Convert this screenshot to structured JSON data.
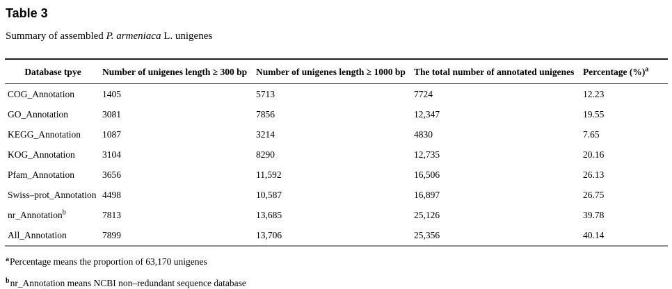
{
  "title": "Table 3",
  "subtitle": {
    "prefix": "Summary of assembled ",
    "species": "P. armeniaca",
    "suffix": " L. unigenes"
  },
  "table": {
    "columns": {
      "database": "Database tpye",
      "len300": "Number of unigenes length ≥ 300 bp",
      "len1000": "Number of unigenes length ≥ 1000 bp",
      "total": "The total number of annotated unigenes",
      "percentage": "Percentage (%)",
      "percentage_sup": "a"
    },
    "rows": [
      {
        "name": "COG_Annotation",
        "name_sup": "",
        "v300": "1405",
        "v1000": "5713",
        "total": "7724",
        "pct": "12.23"
      },
      {
        "name": "GO_Annotation",
        "name_sup": "",
        "v300": "3081",
        "v1000": "7856",
        "total": "12,347",
        "pct": "19.55"
      },
      {
        "name": "KEGG_Annotation",
        "name_sup": "",
        "v300": "1087",
        "v1000": "3214",
        "total": "4830",
        "pct": "7.65"
      },
      {
        "name": "KOG_Annotation",
        "name_sup": "",
        "v300": "3104",
        "v1000": "8290",
        "total": "12,735",
        "pct": "20.16"
      },
      {
        "name": "Pfam_Annotation",
        "name_sup": "",
        "v300": "3656",
        "v1000": "11,592",
        "total": "16,506",
        "pct": "26.13"
      },
      {
        "name": "Swiss–prot_Annotation",
        "name_sup": "",
        "v300": "4498",
        "v1000": "10,587",
        "total": "16,897",
        "pct": "26.75"
      },
      {
        "name": "nr_Annotation",
        "name_sup": "b",
        "v300": "7813",
        "v1000": "13,685",
        "total": "25,126",
        "pct": "39.78"
      },
      {
        "name": "All_Annotation",
        "name_sup": "",
        "v300": "7899",
        "v1000": "13,706",
        "total": "25,356",
        "pct": "40.14"
      }
    ]
  },
  "footnotes": [
    {
      "marker": "a",
      "text": "Percentage means the proportion of 63,170 unigenes"
    },
    {
      "marker": "b",
      "text": "nr_Annotation means NCBI non–redundant sequence database"
    }
  ]
}
